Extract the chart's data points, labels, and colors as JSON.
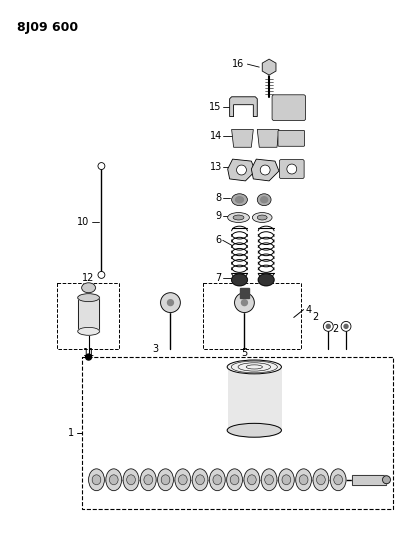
{
  "title": "8J09 600",
  "background": "#ffffff",
  "fig_width": 4.08,
  "fig_height": 5.33,
  "dpi": 100
}
